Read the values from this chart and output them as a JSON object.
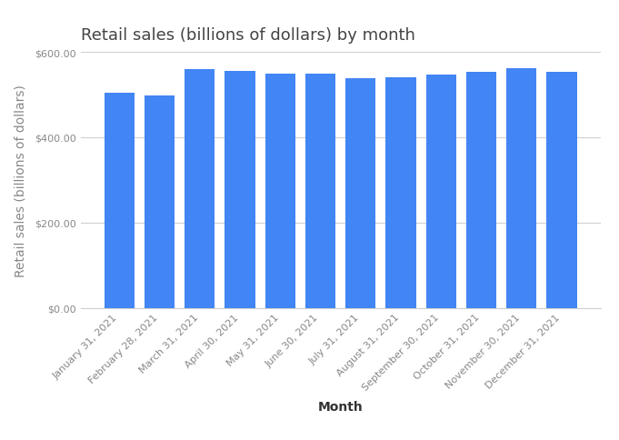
{
  "title": "Retail sales (billions of dollars) by month",
  "xlabel": "Month",
  "ylabel": "Retail sales (billions of dollars)",
  "categories": [
    "January 31, 2021",
    "February 28, 2021",
    "March 31, 2021",
    "April 30, 2021",
    "May 31, 2021",
    "June 30, 2021",
    "July 31, 2021",
    "August 31, 2021",
    "September 30, 2021",
    "October 31, 2021",
    "November 30, 2021",
    "December 31, 2021"
  ],
  "values": [
    505,
    497,
    560,
    555,
    550,
    549,
    538,
    540,
    547,
    553,
    563,
    553
  ],
  "bar_color": "#4285f4",
  "ylim": [
    0,
    600
  ],
  "yticks": [
    0,
    200,
    400,
    600
  ],
  "background_color": "#ffffff",
  "grid_color": "#d0d0d0",
  "title_fontsize": 13,
  "axis_label_fontsize": 10,
  "tick_fontsize": 8,
  "bar_width": 0.75,
  "title_color": "#444444",
  "tick_color": "#888888",
  "ylabel_color": "#888888",
  "xlabel_color": "#333333"
}
